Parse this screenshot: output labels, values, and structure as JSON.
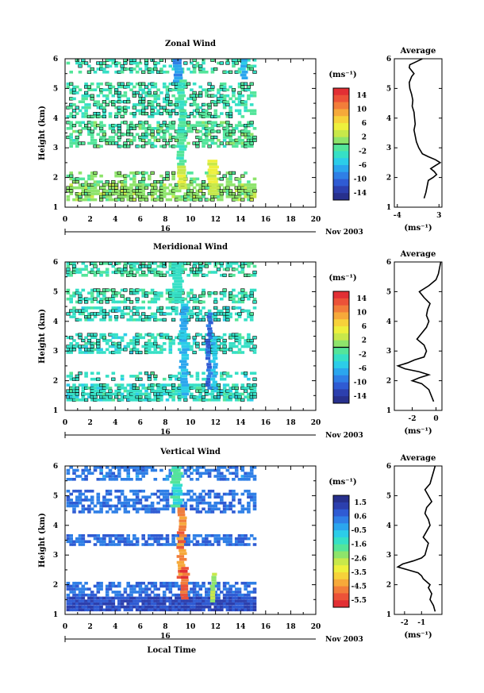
{
  "chart_data": [
    {
      "type": "heatmap",
      "title": "Zonal Wind",
      "ylabel": "Height (km)",
      "units": "(ms⁻¹)",
      "xticks": [
        "0",
        "2",
        "4",
        "6",
        "8",
        "10",
        "12",
        "14",
        "16",
        "18",
        "20"
      ],
      "xlim": [
        0,
        20
      ],
      "yticks": [
        "1",
        "2",
        "3",
        "4",
        "5",
        "6"
      ],
      "ylim": [
        1,
        6
      ],
      "date_marker": "16",
      "date_label": "Nov 2003",
      "colorbar": {
        "ticks": [
          "14",
          "10",
          "6",
          "2",
          "-2",
          "-6",
          "-10",
          "-14"
        ],
        "range": [
          -16,
          16
        ],
        "zero_line": 0
      },
      "data_window": [
        0,
        15.2
      ],
      "layers": [
        {
          "y_range": [
            5.5,
            5.95
          ],
          "value": -2,
          "density": 0.45
        },
        {
          "y_range": [
            4.6,
            5.15
          ],
          "value": -2,
          "density": 0.5
        },
        {
          "y_range": [
            4.0,
            4.5
          ],
          "value": -2,
          "density": 0.5
        },
        {
          "y_range": [
            3.0,
            3.9
          ],
          "value": -1,
          "density": 0.6
        },
        {
          "y_range": [
            1.8,
            2.2
          ],
          "value": 0,
          "density": 0.35
        },
        {
          "y_range": [
            1.2,
            1.75
          ],
          "value": 1,
          "density": 0.75
        }
      ],
      "streaks": [
        {
          "x": [
            8.7,
            9.4
          ],
          "y": [
            5.2,
            5.98
          ],
          "value": -8
        },
        {
          "x": [
            9.0,
            9.6
          ],
          "y": [
            2.4,
            5.2
          ],
          "value": -2
        },
        {
          "x": [
            9.0,
            9.7
          ],
          "y": [
            1.6,
            2.4
          ],
          "value": 4
        },
        {
          "x": [
            11.4,
            12.2
          ],
          "y": [
            1.4,
            2.6
          ],
          "value": 4
        },
        {
          "x": [
            14.0,
            14.5
          ],
          "y": [
            5.3,
            5.98
          ],
          "value": -6
        }
      ],
      "average_panel": {
        "title": "Average",
        "xlabel": "(ms⁻¹)",
        "xticks": [
          "-4",
          "3"
        ],
        "xlim": [
          -4.5,
          3.5
        ],
        "profile_height": [
          1.3,
          1.5,
          1.7,
          1.9,
          2.0,
          2.1,
          2.2,
          2.3,
          2.4,
          2.5,
          2.6,
          2.7,
          2.8,
          3.0,
          3.2,
          3.4,
          3.6,
          3.8,
          4.0,
          4.2,
          4.4,
          4.6,
          4.8,
          5.0,
          5.2,
          5.4,
          5.5,
          5.6,
          5.7,
          5.8,
          5.9,
          6.0
        ],
        "profile_value": [
          0.5,
          0.8,
          1.0,
          1.2,
          2.0,
          2.6,
          2.2,
          1.6,
          2.4,
          3.2,
          2.4,
          1.2,
          0.2,
          -0.4,
          -0.8,
          -1.0,
          -1.2,
          -1.0,
          -1.1,
          -1.2,
          -1.5,
          -1.4,
          -1.6,
          -1.9,
          -2.0,
          -1.6,
          -1.2,
          -1.6,
          -2.0,
          -1.9,
          -0.8,
          0.2
        ]
      }
    },
    {
      "type": "heatmap",
      "title": "Meridional Wind",
      "ylabel": "Height (km)",
      "units": "(ms⁻¹)",
      "xticks": [
        "0",
        "2",
        "4",
        "6",
        "8",
        "10",
        "12",
        "14",
        "16",
        "18",
        "20"
      ],
      "xlim": [
        0,
        20
      ],
      "yticks": [
        "1",
        "2",
        "3",
        "4",
        "5",
        "6"
      ],
      "ylim": [
        1,
        6
      ],
      "date_marker": "16",
      "date_label": "Nov 2003",
      "colorbar": {
        "ticks": [
          "14",
          "10",
          "6",
          "2",
          "-2",
          "-6",
          "-10",
          "-14"
        ],
        "range": [
          -16,
          16
        ],
        "zero_line": 0
      },
      "data_window": [
        0,
        15.2
      ],
      "layers": [
        {
          "y_range": [
            5.5,
            5.95
          ],
          "value": -2,
          "density": 0.55
        },
        {
          "y_range": [
            4.6,
            5.05
          ],
          "value": -2,
          "density": 0.55
        },
        {
          "y_range": [
            4.0,
            4.45
          ],
          "value": -3,
          "density": 0.5
        },
        {
          "y_range": [
            2.9,
            3.6
          ],
          "value": -3,
          "density": 0.6
        },
        {
          "y_range": [
            2.0,
            2.3
          ],
          "value": -3,
          "density": 0.35
        },
        {
          "y_range": [
            1.3,
            1.9
          ],
          "value": -3,
          "density": 0.8
        }
      ],
      "streaks": [
        {
          "x": [
            8.6,
            9.4
          ],
          "y": [
            4.6,
            5.98
          ],
          "value": -3
        },
        {
          "x": [
            9.2,
            9.8
          ],
          "y": [
            1.5,
            4.6
          ],
          "value": -6
        },
        {
          "x": [
            11.3,
            11.7
          ],
          "y": [
            1.7,
            4.3
          ],
          "value": -10
        },
        {
          "x": [
            11.7,
            12.1
          ],
          "y": [
            1.7,
            3.5
          ],
          "value": -6
        }
      ],
      "average_panel": {
        "title": "Average",
        "xlabel": "(ms⁻¹)",
        "xticks": [
          "-2",
          "0"
        ],
        "xlim": [
          -3.5,
          0.5
        ],
        "profile_height": [
          1.3,
          1.5,
          1.7,
          1.9,
          2.0,
          2.1,
          2.2,
          2.3,
          2.4,
          2.5,
          2.6,
          2.7,
          2.8,
          3.0,
          3.2,
          3.4,
          3.6,
          3.8,
          4.0,
          4.2,
          4.4,
          4.6,
          4.8,
          5.0,
          5.2,
          5.4,
          5.6,
          5.8,
          6.0
        ],
        "profile_value": [
          -0.2,
          -0.4,
          -0.6,
          -1.2,
          -2.0,
          -1.4,
          -0.6,
          -1.4,
          -2.6,
          -3.2,
          -2.4,
          -1.8,
          -1.0,
          -0.8,
          -1.0,
          -1.6,
          -1.2,
          -0.8,
          -0.6,
          -0.8,
          -0.7,
          -0.5,
          -1.0,
          -1.4,
          -0.6,
          0.0,
          0.2,
          0.3,
          0.4
        ]
      }
    },
    {
      "type": "heatmap",
      "title": "Vertical Wind",
      "xlabel": "Local Time",
      "ylabel": "Height (km)",
      "units": "(ms⁻¹)",
      "xticks": [
        "0",
        "2",
        "4",
        "6",
        "8",
        "10",
        "12",
        "14",
        "16",
        "18",
        "20"
      ],
      "xlim": [
        0,
        20
      ],
      "yticks": [
        "1",
        "2",
        "3",
        "4",
        "5",
        "6"
      ],
      "ylim": [
        1,
        6
      ],
      "date_marker": "16",
      "date_label": "Nov 2003",
      "colorbar": {
        "ticks": [
          "1.5",
          "0.6",
          "-0.5",
          "-1.6",
          "-2.6",
          "-3.5",
          "-4.5",
          "-5.5"
        ],
        "range": [
          2.0,
          -6.0
        ],
        "zero_line": null
      },
      "data_window": [
        0,
        15.2
      ],
      "layers": [
        {
          "y_range": [
            5.5,
            5.98
          ],
          "value": 0.3,
          "density": 0.55
        },
        {
          "y_range": [
            4.4,
            5.1
          ],
          "value": 0.4,
          "density": 0.55
        },
        {
          "y_range": [
            3.3,
            3.7
          ],
          "value": 0.5,
          "density": 0.7
        },
        {
          "y_range": [
            1.6,
            2.1
          ],
          "value": 0.5,
          "density": 0.65
        },
        {
          "y_range": [
            1.1,
            1.6
          ],
          "value": 1.0,
          "density": 0.95
        }
      ],
      "streaks": [
        {
          "x": [
            8.5,
            9.3
          ],
          "y": [
            4.6,
            5.98
          ],
          "value": -1.4
        },
        {
          "x": [
            9.0,
            9.6
          ],
          "y": [
            2.2,
            4.6
          ],
          "value": -4.6
        },
        {
          "x": [
            9.3,
            9.9
          ],
          "y": [
            1.5,
            2.6
          ],
          "value": -5.4
        },
        {
          "x": [
            11.6,
            12.0
          ],
          "y": [
            1.4,
            2.4
          ],
          "value": -2.6
        }
      ],
      "average_panel": {
        "title": "Average",
        "xlabel": "(ms⁻¹)",
        "xticks": [
          "-2",
          "-1"
        ],
        "xlim": [
          -2.6,
          0.2
        ],
        "profile_height": [
          1.1,
          1.3,
          1.5,
          1.7,
          1.9,
          2.0,
          2.1,
          2.2,
          2.3,
          2.4,
          2.5,
          2.6,
          2.7,
          2.8,
          2.9,
          3.0,
          3.2,
          3.4,
          3.6,
          3.8,
          4.0,
          4.2,
          4.4,
          4.6,
          4.8,
          5.0,
          5.2,
          5.4,
          5.6,
          5.8,
          6.0
        ],
        "profile_value": [
          -0.2,
          -0.3,
          -0.5,
          -0.4,
          -0.6,
          -0.5,
          -0.7,
          -0.9,
          -1.0,
          -1.2,
          -1.8,
          -2.4,
          -2.1,
          -1.5,
          -1.0,
          -0.8,
          -0.7,
          -0.6,
          -0.9,
          -0.7,
          -0.5,
          -0.6,
          -0.8,
          -0.7,
          -0.4,
          -0.6,
          -0.8,
          -0.5,
          -0.4,
          -0.3,
          -0.2
        ]
      }
    }
  ]
}
